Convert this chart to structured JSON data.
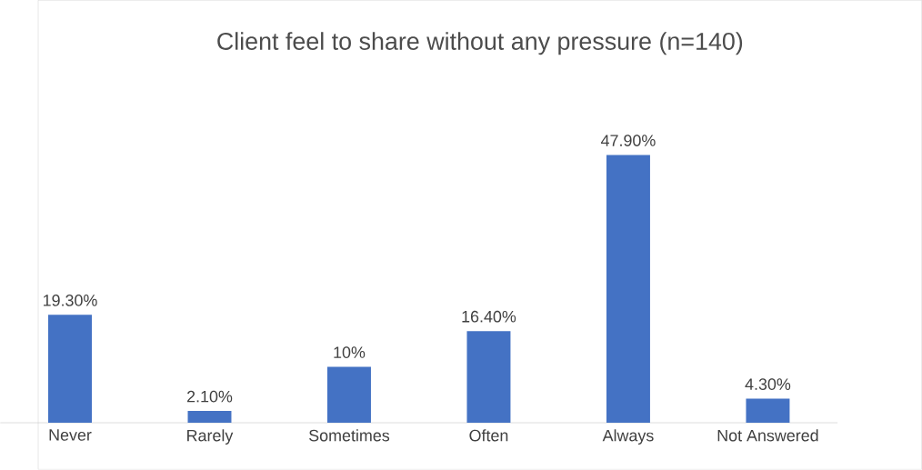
{
  "chart_data": {
    "type": "bar",
    "title": "Client feel to share without any pressure (n=140)",
    "categories": [
      "Never",
      "Rarely",
      "Sometimes",
      "Often",
      "Always",
      "Not Answered"
    ],
    "values": [
      19.3,
      2.1,
      10,
      16.4,
      47.9,
      4.3
    ],
    "value_labels": [
      "19.30%",
      "2.10%",
      "10%",
      "16.40%",
      "47.90%",
      "4.30%"
    ],
    "color": "#4472c4"
  }
}
